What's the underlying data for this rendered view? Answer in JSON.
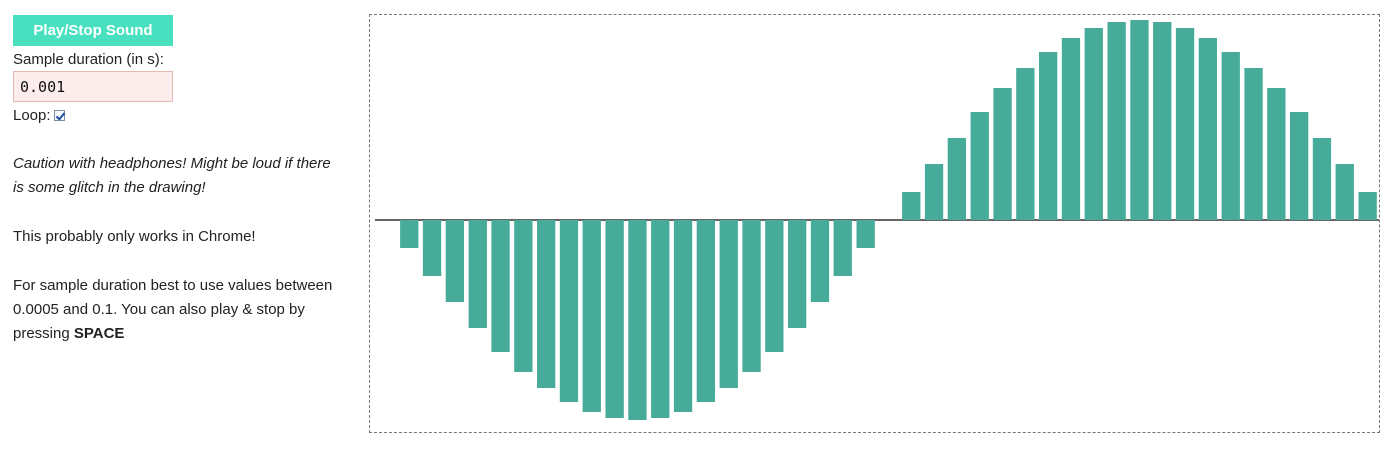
{
  "controls": {
    "play_button_label": "Play/Stop Sound",
    "duration_label": "Sample duration (in s):",
    "duration_value": "0.001",
    "loop_label": "Loop:",
    "loop_checked": true
  },
  "notes": {
    "caution": "Caution with headphones! Might be loud if there is some glitch in the drawing!",
    "chrome": "This probably only works in Chrome!",
    "duration_prefix": "For sample duration best to use values between 0.0005 and 0.1. You can also play & stop by pressing ",
    "duration_key": "SPACE"
  },
  "colors": {
    "accent": "#48e0bf",
    "bar": "#46ab98",
    "axis": "#333333"
  },
  "chart_data": {
    "type": "bar",
    "ylim": [
      -1,
      1
    ],
    "grid": false,
    "values": [
      0,
      -0.14,
      -0.28,
      -0.41,
      -0.54,
      -0.66,
      -0.76,
      -0.84,
      -0.91,
      -0.96,
      -0.99,
      -1.0,
      -0.99,
      -0.96,
      -0.91,
      -0.84,
      -0.76,
      -0.66,
      -0.54,
      -0.41,
      -0.28,
      -0.14,
      0,
      0.14,
      0.28,
      0.41,
      0.54,
      0.66,
      0.76,
      0.84,
      0.91,
      0.96,
      0.99,
      1.0,
      0.99,
      0.96,
      0.91,
      0.84,
      0.76,
      0.66,
      0.54,
      0.41,
      0.28,
      0.14
    ]
  }
}
